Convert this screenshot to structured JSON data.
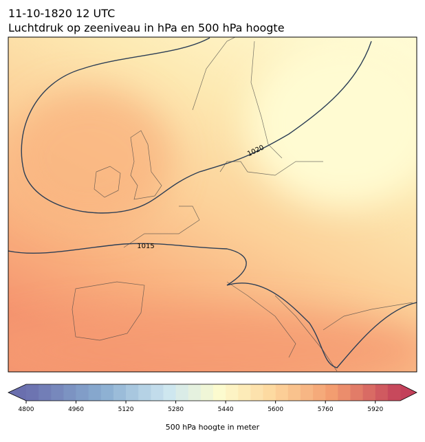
{
  "header": {
    "date": "11-10-1820 12 UTC",
    "title": "Luchtdruk op zeeniveau in hPa en 500 hPa hoogte"
  },
  "map": {
    "isobar_labels": [
      1020,
      1015
    ]
  },
  "colorbar": {
    "label": "500 hPa hoogte in meter",
    "range": [
      4800,
      6000
    ],
    "ticks": [
      4800,
      4960,
      5120,
      5280,
      5440,
      5600,
      5760,
      5920
    ]
  }
}
